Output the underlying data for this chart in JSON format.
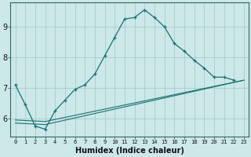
{
  "title": "",
  "xlabel": "Humidex (Indice chaleur)",
  "bg_color": "#cce8e8",
  "line_color": "#1a7070",
  "grid_color": "#aacccc",
  "xlim": [
    -0.5,
    23.5
  ],
  "ylim": [
    5.4,
    9.8
  ],
  "xticks": [
    0,
    1,
    2,
    3,
    4,
    5,
    6,
    7,
    8,
    9,
    10,
    11,
    12,
    13,
    14,
    15,
    16,
    17,
    18,
    19,
    20,
    21,
    22,
    23
  ],
  "yticks": [
    6,
    7,
    8,
    9
  ],
  "line1_x": [
    0,
    1,
    2,
    3,
    4,
    5,
    6,
    7,
    8,
    9,
    10,
    11,
    12,
    13,
    14,
    15,
    16,
    17,
    18,
    19,
    20,
    21,
    22
  ],
  "line1_y": [
    7.1,
    6.45,
    5.75,
    5.65,
    6.25,
    6.6,
    6.95,
    7.1,
    7.45,
    8.05,
    8.65,
    9.25,
    9.3,
    9.55,
    9.3,
    9.0,
    8.45,
    8.2,
    7.9,
    7.65,
    7.35,
    7.35,
    7.25
  ],
  "line2_x": [
    0,
    3,
    23
  ],
  "line2_y": [
    5.85,
    5.8,
    7.25
  ],
  "line3_x": [
    0,
    3,
    23
  ],
  "line3_y": [
    5.95,
    5.9,
    7.25
  ]
}
